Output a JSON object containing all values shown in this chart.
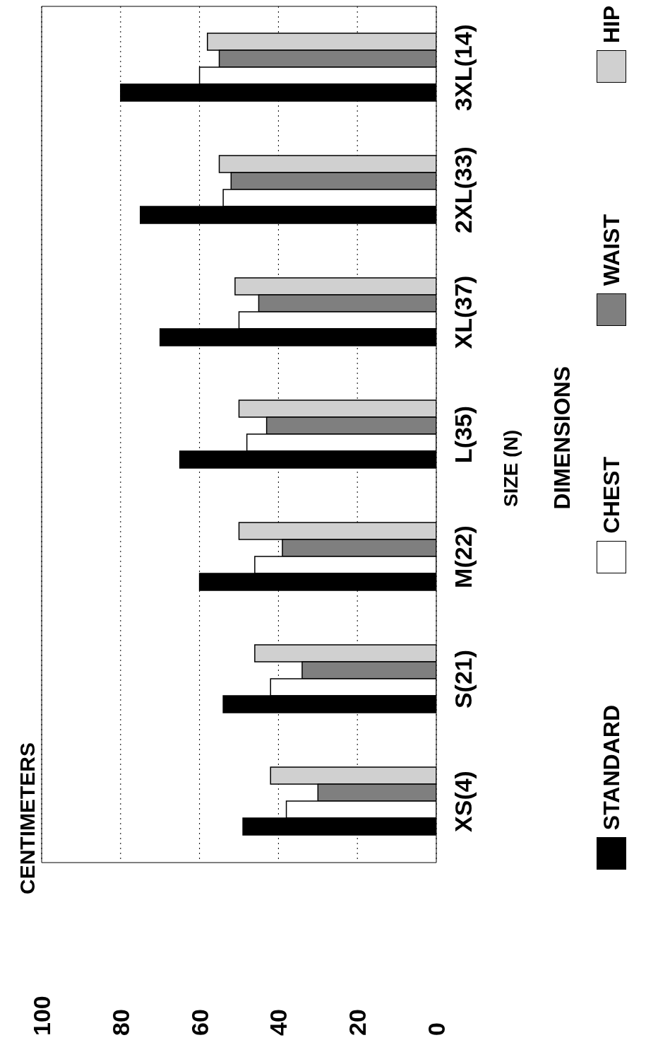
{
  "chart_data": {
    "type": "bar",
    "orientation": "horizontal",
    "title": "CENTIMETERS",
    "ylabel": "SIZE (N)",
    "legend_title": "DIMENSIONS",
    "categories": [
      "3XL(14)",
      "2XL(33)",
      "XL(37)",
      "L(35)",
      "M(22)",
      "S(21)",
      "XS(4)"
    ],
    "series": [
      {
        "name": "STANDARD",
        "color": "#000000",
        "values": [
          80,
          75,
          70,
          65,
          60,
          54,
          49
        ]
      },
      {
        "name": "CHEST",
        "color": "#ffffff",
        "values": [
          60,
          54,
          50,
          48,
          46,
          42,
          38
        ]
      },
      {
        "name": "WAIST",
        "color": "#7f7f7f",
        "values": [
          55,
          52,
          45,
          43,
          39,
          34,
          30
        ]
      },
      {
        "name": "HIP",
        "color": "#d0d0d0",
        "values": [
          58,
          55,
          51,
          50,
          50,
          46,
          42
        ]
      }
    ],
    "xlim": [
      100,
      0
    ],
    "xticks": [
      0,
      20,
      40,
      60,
      80,
      100
    ],
    "grid": "x",
    "legend": "right"
  }
}
